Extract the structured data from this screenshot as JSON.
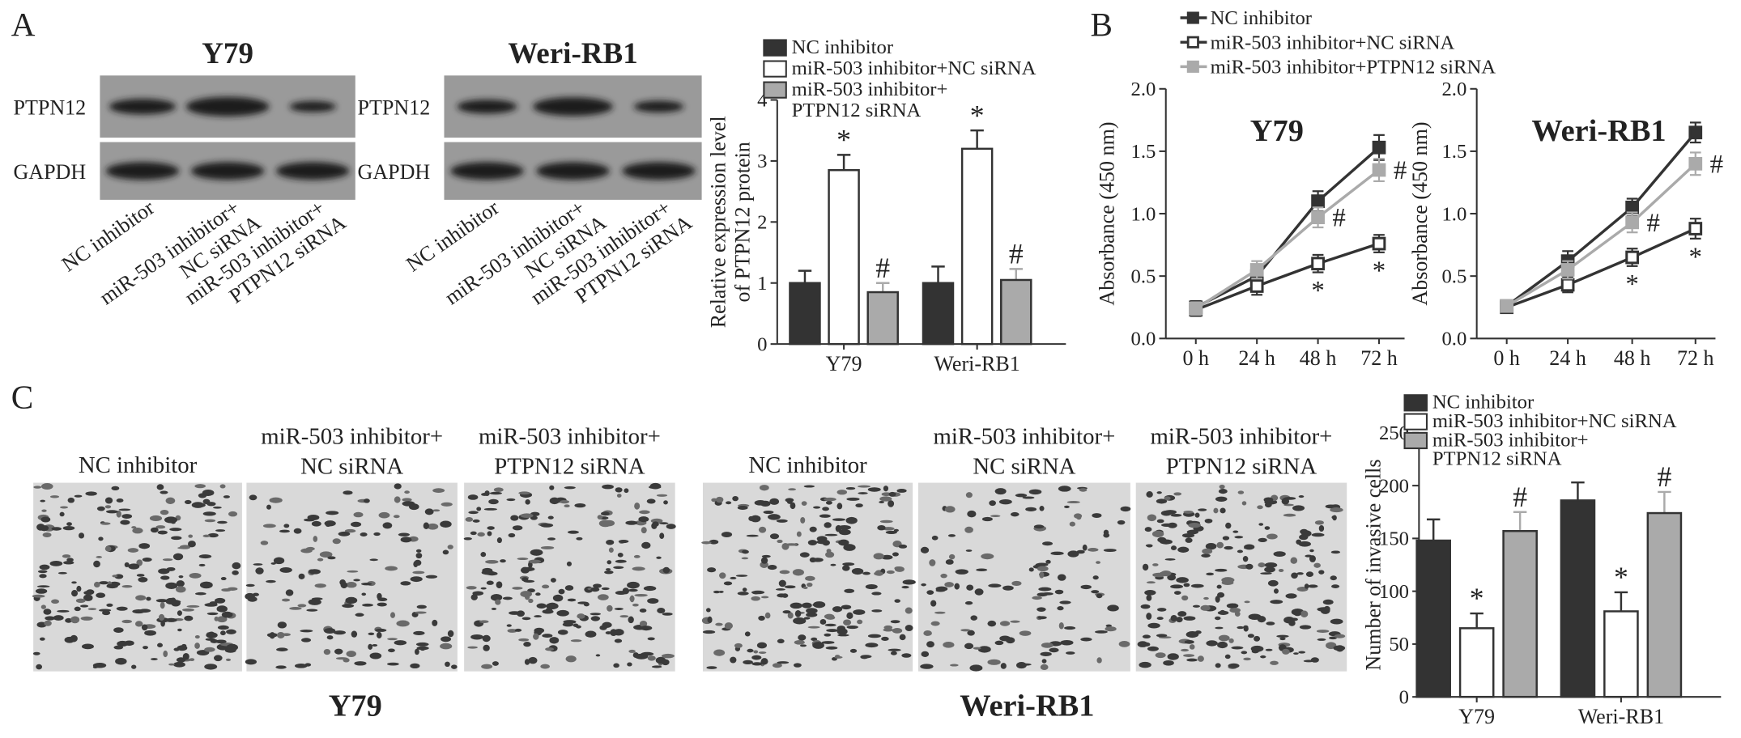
{
  "panel_labels": [
    "A",
    "B",
    "C"
  ],
  "blots": [
    {
      "title": "Y79",
      "rows": [
        "PTPN12",
        "GAPDH"
      ]
    },
    {
      "title": "Weri-RB1",
      "rows": [
        "PTPN12",
        "GAPDH"
      ]
    }
  ],
  "lanes": [
    [
      "NC inhibitor"
    ],
    [
      "miR-503 inhibitor+",
      "NC siRNA"
    ],
    [
      "miR-503 inhibitor+",
      "PTPN12 siRNA"
    ]
  ],
  "micrographs": {
    "groups": [
      "Y79",
      "Weri-RB1"
    ],
    "conditions": [
      [
        "NC inhibitor"
      ],
      [
        "miR-503 inhibitor+",
        "NC siRNA"
      ],
      [
        "miR-503 inhibitor+",
        "PTPN12 siRNA"
      ]
    ]
  },
  "chart_data": [
    {
      "type": "bar",
      "ylabel": [
        "Relative expression level",
        "of PTPN12 protein"
      ],
      "categories": [
        "Y79",
        "Weri-RB1"
      ],
      "ylim": [
        0,
        4
      ],
      "yticks": [
        0,
        1,
        2,
        3,
        4
      ],
      "series": [
        {
          "name": [
            "NC inhibitor"
          ],
          "color": "#333333",
          "values": [
            1.0,
            1.0
          ],
          "errors": [
            0.2,
            0.27
          ]
        },
        {
          "name": [
            "miR-503 inhibitor+NC siRNA"
          ],
          "color": "#ffffff",
          "values": [
            2.85,
            3.2
          ],
          "errors": [
            0.25,
            0.3
          ],
          "annotation": "*"
        },
        {
          "name": [
            "miR-503 inhibitor+",
            "PTPN12 siRNA"
          ],
          "color": "#aaaaaa",
          "values": [
            0.85,
            1.05
          ],
          "errors": [
            0.15,
            0.18
          ],
          "annotation": "#"
        }
      ]
    },
    {
      "type": "line",
      "title": "Y79",
      "ylabel": "Absorbance (450 nm)",
      "categories": [
        "0 h",
        "24 h",
        "48 h",
        "72 h"
      ],
      "ylim": [
        0,
        2
      ],
      "yticks": [
        {
          "value": 0,
          "label": "0.0"
        },
        0.5,
        {
          "value": 1,
          "label": "1.0"
        },
        1.5,
        {
          "value": 2,
          "label": "2.0"
        }
      ],
      "series": [
        {
          "name": [
            "NC inhibitor"
          ],
          "color": "#333333",
          "values": [
            0.25,
            0.5,
            1.1,
            1.53
          ],
          "errors": [
            0.05,
            0.08,
            0.08,
            0.1
          ]
        },
        {
          "name": [
            "miR-503 inhibitor+NC siRNA"
          ],
          "color": "#ffffff",
          "values": [
            0.23,
            0.42,
            0.6,
            0.76
          ],
          "errors": [
            0.05,
            0.07,
            0.07,
            0.07
          ],
          "point_labels": [
            null,
            null,
            "*",
            "*"
          ]
        },
        {
          "name": [
            "miR-503 inhibitor+PTPN12 siRNA"
          ],
          "color": "#aaaaaa",
          "values": [
            0.24,
            0.55,
            0.97,
            1.35
          ],
          "errors": [
            0.05,
            0.07,
            0.08,
            0.09
          ],
          "point_labels": [
            null,
            null,
            "#",
            "#"
          ]
        }
      ]
    },
    {
      "type": "line",
      "title": "Weri-RB1",
      "ylabel": "Absorbance (450 nm)",
      "categories": [
        "0 h",
        "24 h",
        "48 h",
        "72 h"
      ],
      "ylim": [
        0,
        2
      ],
      "yticks": [
        {
          "value": 0,
          "label": "0.0"
        },
        0.5,
        {
          "value": 1,
          "label": "1.0"
        },
        1.5,
        {
          "value": 2,
          "label": "2.0"
        }
      ],
      "series": [
        {
          "color": "#333333",
          "values": [
            0.26,
            0.62,
            1.05,
            1.65
          ],
          "errors": [
            0.04,
            0.08,
            0.07,
            0.08
          ]
        },
        {
          "color": "#ffffff",
          "values": [
            0.25,
            0.43,
            0.65,
            0.88
          ],
          "errors": [
            0.04,
            0.06,
            0.07,
            0.08
          ],
          "point_labels": [
            null,
            null,
            "*",
            "*"
          ]
        },
        {
          "color": "#aaaaaa",
          "values": [
            0.26,
            0.55,
            0.93,
            1.4
          ],
          "errors": [
            0.04,
            0.07,
            0.08,
            0.09
          ],
          "point_labels": [
            null,
            null,
            "#",
            "#"
          ]
        }
      ]
    },
    {
      "type": "bar",
      "ylabel": [
        "Number of invasive cells"
      ],
      "categories": [
        "Y79",
        "Weri-RB1"
      ],
      "ylim": [
        0,
        250
      ],
      "yticks": [
        0,
        50,
        100,
        150,
        200,
        250
      ],
      "series": [
        {
          "name": [
            "NC inhibitor"
          ],
          "color": "#333333",
          "values": [
            148,
            186
          ],
          "errors": [
            20,
            17
          ]
        },
        {
          "name": [
            "miR-503 inhibitor+NC siRNA"
          ],
          "color": "#ffffff",
          "values": [
            65,
            81
          ],
          "errors": [
            14,
            18
          ],
          "annotation": "*"
        },
        {
          "name": [
            "miR-503 inhibitor+",
            "PTPN12 siRNA"
          ],
          "color": "#aaaaaa",
          "values": [
            157,
            174
          ],
          "errors": [
            18,
            20
          ],
          "annotation": "#"
        }
      ]
    }
  ]
}
